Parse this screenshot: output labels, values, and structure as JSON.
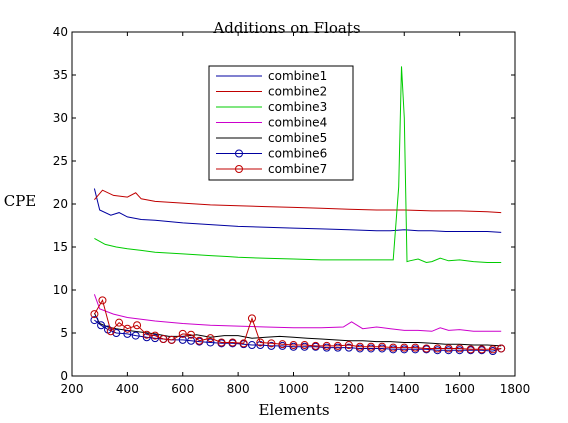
{
  "chart_data": {
    "type": "line",
    "title": "Additions on Floats",
    "xlabel": "Elements",
    "ylabel": "CPE",
    "xlim": [
      200,
      1800
    ],
    "ylim": [
      0,
      40
    ],
    "xticks": [
      200,
      400,
      600,
      800,
      1000,
      1200,
      1400,
      1600,
      1800
    ],
    "yticks": [
      0,
      5,
      10,
      15,
      20,
      25,
      30,
      35,
      40
    ],
    "grid": false,
    "legend_position": "top-center",
    "series": [
      {
        "name": "combine1",
        "color": "#0000a0",
        "marker": "none",
        "x": [
          281,
          300,
          340,
          370,
          400,
          450,
          500,
          600,
          700,
          800,
          900,
          1000,
          1100,
          1200,
          1300,
          1350,
          1400,
          1450,
          1500,
          1550,
          1600,
          1700,
          1750
        ],
        "y": [
          21.8,
          19.3,
          18.7,
          19.0,
          18.5,
          18.2,
          18.1,
          17.8,
          17.6,
          17.4,
          17.3,
          17.2,
          17.1,
          17.0,
          16.9,
          16.9,
          17.0,
          16.9,
          16.9,
          16.8,
          16.8,
          16.8,
          16.7
        ]
      },
      {
        "name": "combine2",
        "color": "#c00000",
        "marker": "none",
        "x": [
          281,
          310,
          350,
          400,
          430,
          450,
          500,
          600,
          700,
          800,
          900,
          1000,
          1100,
          1200,
          1300,
          1400,
          1500,
          1600,
          1700,
          1750
        ],
        "y": [
          20.5,
          21.6,
          21.0,
          20.8,
          21.3,
          20.6,
          20.3,
          20.1,
          19.9,
          19.8,
          19.7,
          19.6,
          19.5,
          19.4,
          19.3,
          19.3,
          19.2,
          19.2,
          19.1,
          19.0
        ]
      },
      {
        "name": "combine3",
        "color": "#00cc00",
        "marker": "none",
        "x": [
          281,
          320,
          360,
          400,
          450,
          500,
          600,
          700,
          760,
          800,
          900,
          1000,
          1100,
          1200,
          1300,
          1360,
          1380,
          1390,
          1400,
          1410,
          1420,
          1450,
          1480,
          1500,
          1530,
          1560,
          1600,
          1650,
          1700,
          1750
        ],
        "y": [
          16.0,
          15.3,
          15.0,
          14.8,
          14.6,
          14.4,
          14.2,
          14.0,
          13.9,
          13.8,
          13.7,
          13.6,
          13.5,
          13.5,
          13.5,
          13.5,
          22.0,
          36.0,
          30.0,
          13.3,
          13.4,
          13.6,
          13.2,
          13.3,
          13.7,
          13.4,
          13.5,
          13.3,
          13.2,
          13.2
        ]
      },
      {
        "name": "combine4",
        "color": "#cc00cc",
        "marker": "none",
        "x": [
          281,
          300,
          350,
          400,
          450,
          500,
          600,
          700,
          800,
          900,
          1000,
          1100,
          1180,
          1210,
          1250,
          1300,
          1350,
          1400,
          1450,
          1500,
          1530,
          1560,
          1600,
          1650,
          1700,
          1750
        ],
        "y": [
          9.5,
          7.8,
          7.2,
          6.8,
          6.6,
          6.4,
          6.1,
          5.9,
          5.8,
          5.7,
          5.6,
          5.6,
          5.7,
          6.3,
          5.5,
          5.7,
          5.5,
          5.3,
          5.3,
          5.2,
          5.6,
          5.3,
          5.4,
          5.2,
          5.2,
          5.2
        ]
      },
      {
        "name": "combine5",
        "color": "#000000",
        "marker": "none",
        "x": [
          281,
          300,
          330,
          360,
          400,
          450,
          500,
          550,
          600,
          650,
          700,
          750,
          800,
          850,
          900,
          950,
          1000,
          1050,
          1100,
          1150,
          1200,
          1250,
          1300,
          1350,
          1400,
          1450,
          1500,
          1550,
          1600,
          1650,
          1700,
          1750
        ],
        "y": [
          7.3,
          6.1,
          5.7,
          5.5,
          5.3,
          5.1,
          4.9,
          4.6,
          4.6,
          4.8,
          4.5,
          4.7,
          4.7,
          4.4,
          4.5,
          4.6,
          4.5,
          4.4,
          4.3,
          4.2,
          4.1,
          4.1,
          4.0,
          4.0,
          3.9,
          3.9,
          3.8,
          3.7,
          3.7,
          3.6,
          3.6,
          3.5
        ]
      },
      {
        "name": "combine6",
        "color": "#0000a0",
        "marker": "circle",
        "x": [
          281,
          305,
          330,
          360,
          400,
          430,
          470,
          500,
          530,
          560,
          600,
          630,
          660,
          700,
          740,
          780,
          820,
          850,
          880,
          920,
          960,
          1000,
          1040,
          1080,
          1120,
          1160,
          1200,
          1240,
          1280,
          1320,
          1360,
          1400,
          1440,
          1480,
          1520,
          1560,
          1600,
          1640,
          1680,
          1720,
          1750
        ],
        "y": [
          6.5,
          5.9,
          5.4,
          5.0,
          4.9,
          4.7,
          4.5,
          4.4,
          4.3,
          4.2,
          4.2,
          4.1,
          4.0,
          3.9,
          3.8,
          3.8,
          3.7,
          3.6,
          3.6,
          3.5,
          3.5,
          3.4,
          3.4,
          3.4,
          3.3,
          3.3,
          3.3,
          3.2,
          3.2,
          3.2,
          3.1,
          3.1,
          3.1,
          3.1,
          3.0,
          3.0,
          3.0,
          3.0,
          3.0,
          2.9,
          3.2
        ]
      },
      {
        "name": "combine7",
        "color": "#c00000",
        "marker": "circle",
        "x": [
          281,
          310,
          340,
          370,
          400,
          435,
          470,
          500,
          530,
          560,
          600,
          630,
          660,
          700,
          740,
          780,
          820,
          850,
          880,
          920,
          960,
          1000,
          1040,
          1080,
          1120,
          1160,
          1200,
          1240,
          1280,
          1320,
          1360,
          1400,
          1440,
          1480,
          1520,
          1560,
          1600,
          1640,
          1680,
          1720,
          1750
        ],
        "y": [
          7.2,
          8.8,
          5.2,
          6.2,
          5.5,
          5.9,
          4.8,
          4.7,
          4.3,
          4.2,
          4.9,
          4.8,
          4.1,
          4.4,
          3.9,
          3.9,
          3.8,
          6.7,
          3.9,
          3.8,
          3.7,
          3.6,
          3.6,
          3.5,
          3.5,
          3.5,
          3.6,
          3.4,
          3.4,
          3.4,
          3.3,
          3.3,
          3.3,
          3.2,
          3.2,
          3.2,
          3.2,
          3.1,
          3.1,
          3.1,
          3.2
        ]
      }
    ]
  }
}
